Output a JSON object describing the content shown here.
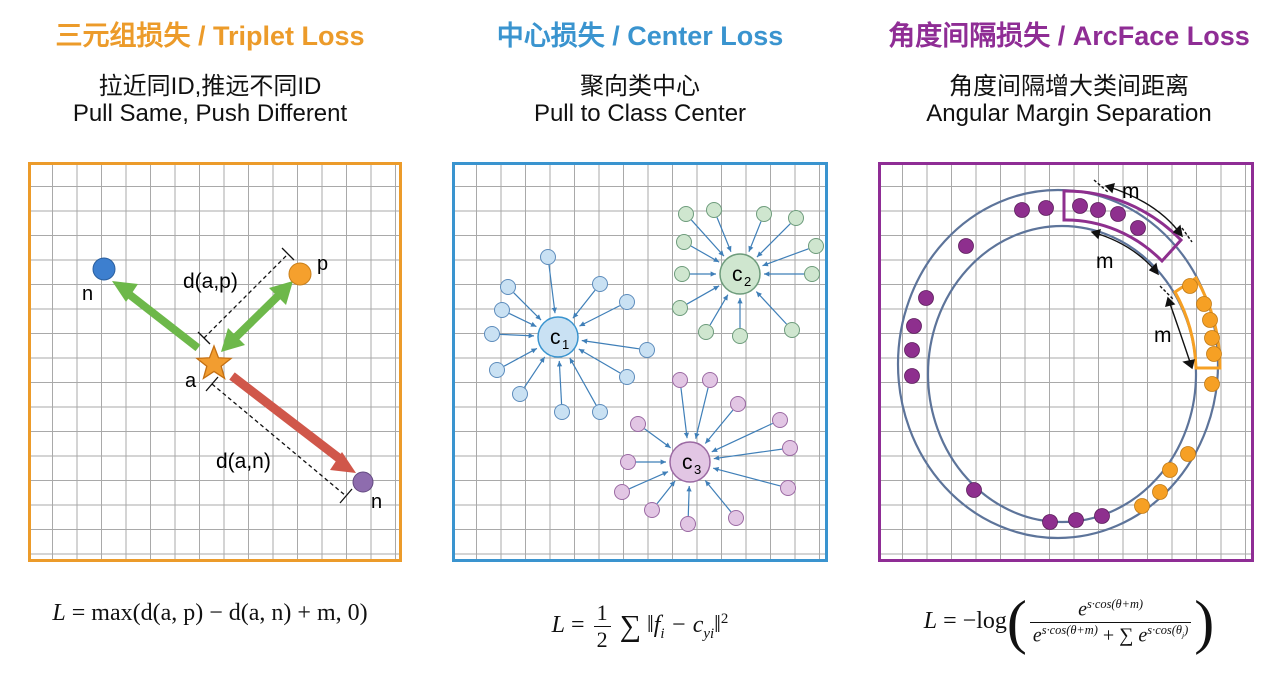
{
  "panels": {
    "triplet": {
      "title": "三元组损失 / Triplet Loss",
      "subtitle_zh": "拉近同ID,推远不同ID",
      "subtitle_en": "Pull Same, Push Different",
      "color": "#ec9b2a",
      "labels": {
        "anchor": "a",
        "positive": "p",
        "negative_left": "n",
        "negative_right": "n",
        "dist_ap": "d(a,p)",
        "dist_an": "d(a,n)"
      },
      "formula": {
        "lhs": "L",
        "op": "=",
        "rhs": "max(d(a, p) − d(a, n) + m, 0)"
      }
    },
    "center": {
      "title": "中心损失 / Center Loss",
      "subtitle_zh": "聚向类中心",
      "subtitle_en": "Pull to Class Center",
      "color": "#3a94cf",
      "labels": {
        "c1": "c",
        "c1_sub": "1",
        "c2": "c",
        "c2_sub": "2",
        "c3": "c",
        "c3_sub": "3"
      },
      "formula": {
        "lhs": "L",
        "op": "=",
        "frac_num": "1",
        "frac_den": "2",
        "sum": "∑",
        "body": "‖f",
        "body_sub_f": "i",
        "minus": " − c",
        "body_sub_c": "yi",
        "close": "‖",
        "power": "2"
      }
    },
    "arcface": {
      "title": "角度间隔损失 / ArcFace Loss",
      "subtitle_zh": "角度间隔增大类间距离",
      "subtitle_en": "Angular Margin Separation",
      "color": "#8f2d95",
      "labels": {
        "margin_top": "m",
        "margin_mid": "m",
        "margin_right": "m"
      },
      "formula": {
        "lhs": "L",
        "op": "= −log",
        "num_base": "e",
        "num_exp": "s·cos(θ+m)",
        "den_base1": "e",
        "den_exp1": "s·cos(θ+m)",
        "den_plus": " + ∑ ",
        "den_base2": "e",
        "den_exp2": "s·cos(θ",
        "den_exp2_sub": "j",
        "den_exp2_close": ")",
        "open_paren": "(",
        "close_paren": ")"
      }
    }
  },
  "colors": {
    "orange": "#ec9b2a",
    "blue": "#3a94cf",
    "purple": "#8f2d95",
    "green_arrow": "#6db84a",
    "red_arrow": "#d0574a",
    "grid": "#9a9a9a",
    "dot_blue": "#3d7fcf",
    "dot_orange": "#f5a02d",
    "dot_purple": "#8e6cae",
    "light_blue": "#c9e1f3",
    "light_green": "#cfe6cf",
    "light_purple": "#e2c6e4",
    "ring": "#5d749a",
    "arcface_purple": "#8e2f8e",
    "arcface_orange": "#f6a024"
  }
}
